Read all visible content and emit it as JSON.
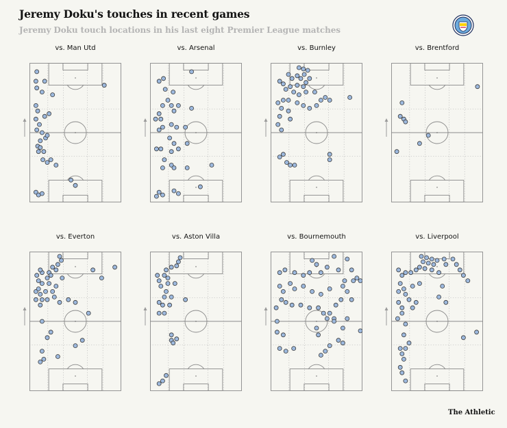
{
  "header": {
    "title": "Jeremy Doku's touches in recent games",
    "subtitle": "Jeremy Doku touch locations in his last eight Premier League matches"
  },
  "credit": "The Athletic",
  "colors": {
    "background": "#f6f6f1",
    "pitch_line": "#8a8a8a",
    "guide_line": "#b8b8b8",
    "touch_fill": "#9db9de",
    "touch_stroke": "#3a3a3a",
    "badge_blue": "#6cabdd"
  },
  "icons": [
    "manchester-city-crest-icon",
    "attack-direction-arrow-icon"
  ],
  "chart_data": [
    {
      "type": "scatter",
      "title": "vs. Man Utd",
      "xlim": [
        0,
        100
      ],
      "ylim": [
        0,
        100
      ],
      "points": [
        [
          6,
          95
        ],
        [
          5,
          88
        ],
        [
          6,
          83
        ],
        [
          15,
          88
        ],
        [
          12,
          80
        ],
        [
          24,
          78
        ],
        [
          5,
          70
        ],
        [
          7,
          66
        ],
        [
          15,
          62
        ],
        [
          20,
          64
        ],
        [
          5,
          60
        ],
        [
          9,
          56
        ],
        [
          6,
          52
        ],
        [
          12,
          50
        ],
        [
          16,
          46
        ],
        [
          18,
          48
        ],
        [
          10,
          44
        ],
        [
          7,
          40
        ],
        [
          8,
          36
        ],
        [
          10,
          39
        ],
        [
          14,
          36
        ],
        [
          13,
          30
        ],
        [
          18,
          28
        ],
        [
          22,
          30
        ],
        [
          28,
          26
        ],
        [
          45,
          15
        ],
        [
          50,
          11
        ],
        [
          83,
          85
        ],
        [
          5,
          6
        ],
        [
          8,
          4
        ],
        [
          12,
          5
        ]
      ]
    },
    {
      "type": "scatter",
      "title": "vs. Arsenal",
      "xlim": [
        0,
        100
      ],
      "ylim": [
        0,
        100
      ],
      "points": [
        [
          45,
          95
        ],
        [
          8,
          88
        ],
        [
          13,
          90
        ],
        [
          15,
          82
        ],
        [
          24,
          80
        ],
        [
          18,
          74
        ],
        [
          30,
          70
        ],
        [
          45,
          68
        ],
        [
          12,
          70
        ],
        [
          22,
          70
        ],
        [
          25,
          66
        ],
        [
          8,
          64
        ],
        [
          4,
          60
        ],
        [
          10,
          60
        ],
        [
          12,
          54
        ],
        [
          22,
          56
        ],
        [
          28,
          54
        ],
        [
          38,
          54
        ],
        [
          8,
          52
        ],
        [
          20,
          46
        ],
        [
          25,
          42
        ],
        [
          40,
          42
        ],
        [
          5,
          38
        ],
        [
          10,
          38
        ],
        [
          22,
          36
        ],
        [
          30,
          38
        ],
        [
          14,
          30
        ],
        [
          12,
          24
        ],
        [
          22,
          26
        ],
        [
          25,
          24
        ],
        [
          40,
          24
        ],
        [
          68,
          26
        ],
        [
          55,
          10
        ],
        [
          25,
          7
        ],
        [
          30,
          5
        ],
        [
          8,
          6
        ],
        [
          12,
          4
        ],
        [
          5,
          3
        ]
      ]
    },
    {
      "type": "scatter",
      "title": "vs. Burnley",
      "xlim": [
        0,
        100
      ],
      "ylim": [
        0,
        100
      ],
      "points": [
        [
          30,
          98
        ],
        [
          35,
          97
        ],
        [
          40,
          96
        ],
        [
          36,
          93
        ],
        [
          28,
          92
        ],
        [
          18,
          93
        ],
        [
          22,
          90
        ],
        [
          32,
          90
        ],
        [
          42,
          90
        ],
        [
          38,
          87
        ],
        [
          28,
          85
        ],
        [
          20,
          84
        ],
        [
          15,
          82
        ],
        [
          12,
          86
        ],
        [
          8,
          88
        ],
        [
          24,
          80
        ],
        [
          30,
          78
        ],
        [
          38,
          80
        ],
        [
          35,
          84
        ],
        [
          48,
          80
        ],
        [
          12,
          74
        ],
        [
          18,
          74
        ],
        [
          28,
          72
        ],
        [
          35,
          70
        ],
        [
          42,
          68
        ],
        [
          50,
          70
        ],
        [
          55,
          74
        ],
        [
          60,
          76
        ],
        [
          65,
          74
        ],
        [
          88,
          76
        ],
        [
          6,
          72
        ],
        [
          10,
          68
        ],
        [
          18,
          66
        ],
        [
          8,
          62
        ],
        [
          20,
          60
        ],
        [
          6,
          56
        ],
        [
          10,
          52
        ],
        [
          12,
          34
        ],
        [
          16,
          28
        ],
        [
          20,
          26
        ],
        [
          25,
          26
        ],
        [
          65,
          34
        ],
        [
          65,
          30
        ],
        [
          8,
          32
        ]
      ]
    },
    {
      "type": "scatter",
      "title": "vs. Brentford",
      "xlim": [
        0,
        100
      ],
      "ylim": [
        0,
        100
      ],
      "points": [
        [
          10,
          72
        ],
        [
          12,
          60
        ],
        [
          8,
          62
        ],
        [
          14,
          58
        ],
        [
          40,
          48
        ],
        [
          30,
          42
        ],
        [
          4,
          36
        ],
        [
          96,
          84
        ]
      ]
    },
    {
      "type": "scatter",
      "title": "vs. Everton",
      "xlim": [
        0,
        100
      ],
      "ylim": [
        0,
        100
      ],
      "points": [
        [
          32,
          98
        ],
        [
          34,
          95
        ],
        [
          30,
          92
        ],
        [
          24,
          90
        ],
        [
          28,
          88
        ],
        [
          20,
          86
        ],
        [
          22,
          84
        ],
        [
          18,
          82
        ],
        [
          12,
          86
        ],
        [
          10,
          88
        ],
        [
          6,
          84
        ],
        [
          8,
          80
        ],
        [
          12,
          78
        ],
        [
          20,
          78
        ],
        [
          28,
          76
        ],
        [
          35,
          82
        ],
        [
          24,
          72
        ],
        [
          26,
          68
        ],
        [
          32,
          64
        ],
        [
          5,
          72
        ],
        [
          8,
          74
        ],
        [
          10,
          70
        ],
        [
          16,
          72
        ],
        [
          5,
          66
        ],
        [
          12,
          66
        ],
        [
          18,
          66
        ],
        [
          10,
          62
        ],
        [
          42,
          66
        ],
        [
          50,
          64
        ],
        [
          80,
          82
        ],
        [
          70,
          88
        ],
        [
          95,
          90
        ],
        [
          12,
          50
        ],
        [
          22,
          42
        ],
        [
          18,
          38
        ],
        [
          50,
          32
        ],
        [
          58,
          36
        ],
        [
          65,
          56
        ],
        [
          14,
          22
        ],
        [
          30,
          24
        ],
        [
          10,
          20
        ],
        [
          12,
          28
        ]
      ]
    },
    {
      "type": "scatter",
      "title": "vs. Aston Villa",
      "xlim": [
        0,
        100
      ],
      "ylim": [
        0,
        100
      ],
      "points": [
        [
          32,
          97
        ],
        [
          30,
          94
        ],
        [
          28,
          91
        ],
        [
          22,
          90
        ],
        [
          16,
          88
        ],
        [
          14,
          84
        ],
        [
          18,
          82
        ],
        [
          6,
          84
        ],
        [
          8,
          80
        ],
        [
          10,
          76
        ],
        [
          18,
          78
        ],
        [
          26,
          78
        ],
        [
          16,
          72
        ],
        [
          14,
          68
        ],
        [
          22,
          68
        ],
        [
          8,
          64
        ],
        [
          12,
          62
        ],
        [
          20,
          62
        ],
        [
          38,
          66
        ],
        [
          8,
          56
        ],
        [
          14,
          56
        ],
        [
          22,
          40
        ],
        [
          28,
          37
        ],
        [
          22,
          36
        ],
        [
          24,
          34
        ],
        [
          16,
          10
        ],
        [
          12,
          6
        ],
        [
          8,
          4
        ]
      ]
    },
    {
      "type": "scatter",
      "title": "vs. Bournemouth",
      "xlim": [
        0,
        100
      ],
      "ylim": [
        0,
        100
      ],
      "points": [
        [
          45,
          95
        ],
        [
          50,
          92
        ],
        [
          62,
          90
        ],
        [
          70,
          98
        ],
        [
          85,
          96
        ],
        [
          8,
          86
        ],
        [
          14,
          88
        ],
        [
          25,
          86
        ],
        [
          35,
          84
        ],
        [
          42,
          86
        ],
        [
          55,
          86
        ],
        [
          75,
          88
        ],
        [
          90,
          88
        ],
        [
          96,
          82
        ],
        [
          100,
          80
        ],
        [
          92,
          80
        ],
        [
          82,
          80
        ],
        [
          8,
          76
        ],
        [
          12,
          72
        ],
        [
          20,
          78
        ],
        [
          25,
          74
        ],
        [
          35,
          76
        ],
        [
          45,
          72
        ],
        [
          55,
          70
        ],
        [
          65,
          74
        ],
        [
          80,
          76
        ],
        [
          85,
          72
        ],
        [
          10,
          66
        ],
        [
          15,
          64
        ],
        [
          22,
          62
        ],
        [
          32,
          62
        ],
        [
          42,
          60
        ],
        [
          52,
          60
        ],
        [
          58,
          56
        ],
        [
          65,
          56
        ],
        [
          72,
          62
        ],
        [
          78,
          66
        ],
        [
          90,
          66
        ],
        [
          4,
          60
        ],
        [
          62,
          52
        ],
        [
          70,
          52
        ],
        [
          70,
          50
        ],
        [
          85,
          52
        ],
        [
          5,
          50
        ],
        [
          50,
          45
        ],
        [
          52,
          40
        ],
        [
          80,
          45
        ],
        [
          100,
          43
        ],
        [
          65,
          32
        ],
        [
          75,
          36
        ],
        [
          80,
          34
        ],
        [
          55,
          25
        ],
        [
          60,
          28
        ],
        [
          24,
          30
        ],
        [
          12,
          40
        ],
        [
          5,
          42
        ],
        [
          8,
          30
        ],
        [
          15,
          28
        ]
      ]
    },
    {
      "type": "scatter",
      "title": "vs. Liverpool",
      "xlim": [
        0,
        100
      ],
      "ylim": [
        0,
        100
      ],
      "points": [
        [
          32,
          98
        ],
        [
          38,
          97
        ],
        [
          44,
          96
        ],
        [
          50,
          95
        ],
        [
          58,
          96
        ],
        [
          34,
          94
        ],
        [
          40,
          93
        ],
        [
          46,
          92
        ],
        [
          60,
          92
        ],
        [
          68,
          96
        ],
        [
          72,
          92
        ],
        [
          76,
          88
        ],
        [
          80,
          84
        ],
        [
          85,
          80
        ],
        [
          6,
          88
        ],
        [
          10,
          84
        ],
        [
          14,
          86
        ],
        [
          20,
          86
        ],
        [
          26,
          88
        ],
        [
          30,
          90
        ],
        [
          36,
          89
        ],
        [
          44,
          88
        ],
        [
          52,
          86
        ],
        [
          8,
          78
        ],
        [
          12,
          74
        ],
        [
          6,
          72
        ],
        [
          14,
          70
        ],
        [
          22,
          76
        ],
        [
          30,
          78
        ],
        [
          18,
          66
        ],
        [
          26,
          64
        ],
        [
          22,
          60
        ],
        [
          56,
          76
        ],
        [
          52,
          68
        ],
        [
          60,
          64
        ],
        [
          6,
          64
        ],
        [
          10,
          60
        ],
        [
          5,
          52
        ],
        [
          10,
          56
        ],
        [
          14,
          48
        ],
        [
          12,
          40
        ],
        [
          95,
          42
        ],
        [
          80,
          38
        ],
        [
          18,
          34
        ],
        [
          8,
          30
        ],
        [
          14,
          30
        ],
        [
          10,
          26
        ],
        [
          12,
          22
        ],
        [
          8,
          16
        ],
        [
          10,
          12
        ],
        [
          14,
          6
        ]
      ]
    }
  ]
}
